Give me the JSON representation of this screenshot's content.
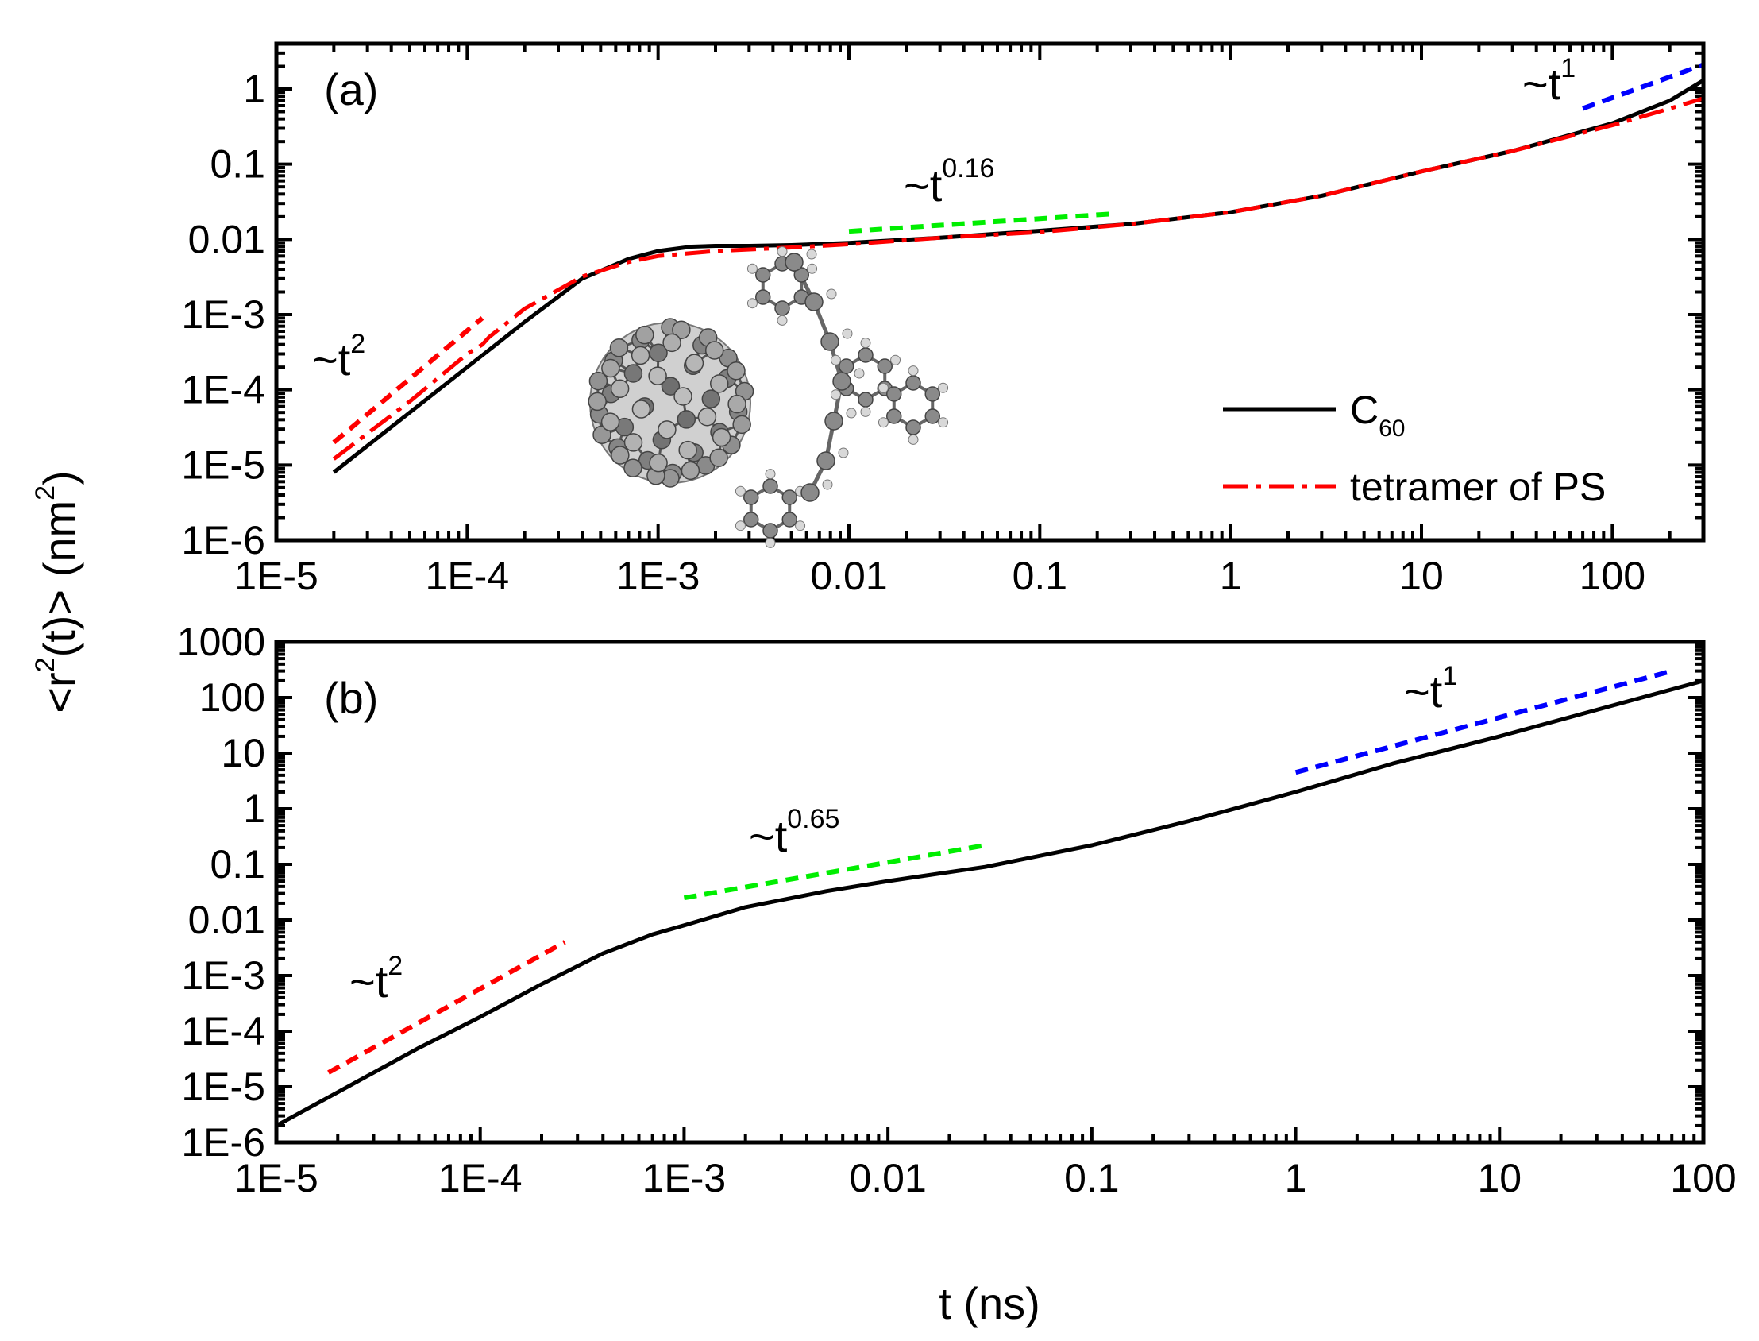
{
  "chart_data": [
    {
      "panel": "(a)",
      "type": "line",
      "xscale": "log",
      "yscale": "log",
      "xlim": [
        1e-05,
        300
      ],
      "ylim": [
        1e-06,
        4
      ],
      "xlabel": "",
      "ylabel": "",
      "xticks": [
        "1E-5",
        "1E-4",
        "1E-3",
        "0.01",
        "0.1",
        "1",
        "10",
        "100"
      ],
      "yticks": [
        "1E-6",
        "1E-5",
        "1E-4",
        "1E-3",
        "0.01",
        "0.1",
        "1"
      ],
      "legend_position": "bottom-right",
      "series": [
        {
          "name": "C60",
          "name_main": "C",
          "name_sub": "60",
          "color": "#000000",
          "style": "solid",
          "x": [
            2e-05,
            5e-05,
            0.0001,
            0.0002,
            0.0004,
            0.0007,
            0.001,
            0.0015,
            0.002,
            0.003,
            0.005,
            0.01,
            0.03,
            0.1,
            0.3,
            1,
            3,
            10,
            30,
            100,
            200,
            300
          ],
          "y": [
            8e-06,
            5e-05,
            0.0002,
            0.0008,
            0.003,
            0.0055,
            0.007,
            0.008,
            0.0082,
            0.0082,
            0.0084,
            0.009,
            0.0105,
            0.013,
            0.016,
            0.023,
            0.038,
            0.08,
            0.15,
            0.35,
            0.7,
            1.3
          ]
        },
        {
          "name": "tetramer of PS",
          "color": "#ff0000",
          "style": "dashdot",
          "x": [
            2e-05,
            5e-05,
            0.0001,
            0.00012,
            0.00013,
            0.0002,
            0.0004,
            0.0007,
            0.001,
            0.002,
            0.005,
            0.01,
            0.03,
            0.1,
            0.3,
            1,
            3,
            10,
            30,
            100,
            200,
            300
          ],
          "y": [
            1.2e-05,
            7e-05,
            0.0003,
            0.0004,
            0.0005,
            0.0012,
            0.0032,
            0.005,
            0.006,
            0.007,
            0.0078,
            0.0086,
            0.0105,
            0.0125,
            0.016,
            0.023,
            0.038,
            0.08,
            0.15,
            0.33,
            0.55,
            0.75
          ]
        }
      ],
      "guides": [
        {
          "label_base": "~t",
          "label_exp": "2",
          "color": "#ff0000",
          "x": [
            2e-05,
            0.00012
          ],
          "y": [
            2e-05,
            0.0009
          ]
        },
        {
          "label_base": "~t",
          "label_exp": "0.16",
          "color": "#00ee00",
          "x": [
            0.01,
            0.25
          ],
          "y": [
            0.0128,
            0.022
          ]
        },
        {
          "label_base": "~t",
          "label_exp": "1",
          "color": "#0000ff",
          "x": [
            70,
            300
          ],
          "y": [
            0.55,
            2.1
          ]
        }
      ]
    },
    {
      "panel": "(b)",
      "type": "line",
      "xscale": "log",
      "yscale": "log",
      "xlim": [
        1e-05,
        100
      ],
      "ylim": [
        1e-06,
        1000
      ],
      "xlabel": "t (ns)",
      "ylabel_base": "<r",
      "ylabel_sup1": "2",
      "ylabel_mid": "(t)> (nm",
      "ylabel_sup2": "2",
      "ylabel_end": ")",
      "xticks": [
        "1E-5",
        "1E-4",
        "1E-3",
        "0.01",
        "0.1",
        "1",
        "10",
        "100"
      ],
      "yticks": [
        "1E-6",
        "1E-5",
        "1E-4",
        "1E-3",
        "0.01",
        "0.1",
        "1",
        "10",
        "100",
        "1000"
      ],
      "series": [
        {
          "name": "C60",
          "color": "#000000",
          "style": "solid",
          "x": [
            1e-05,
            2e-05,
            5e-05,
            0.0001,
            0.0002,
            0.0004,
            0.0007,
            0.001,
            0.002,
            0.005,
            0.01,
            0.03,
            0.1,
            0.3,
            1,
            3,
            10,
            30,
            100
          ],
          "y": [
            2e-06,
            8e-06,
            5e-05,
            0.00018,
            0.0007,
            0.0025,
            0.0055,
            0.008,
            0.017,
            0.033,
            0.05,
            0.09,
            0.22,
            0.6,
            2,
            6.5,
            20,
            60,
            200
          ]
        }
      ],
      "guides": [
        {
          "label_base": "~t",
          "label_exp": "2",
          "color": "#ff0000",
          "x": [
            1.8e-05,
            0.00026
          ],
          "y": [
            1.8e-05,
            0.004
          ]
        },
        {
          "label_base": "~t",
          "label_exp": "0.65",
          "color": "#00ee00",
          "x": [
            0.001,
            0.03
          ],
          "y": [
            0.025,
            0.22
          ]
        },
        {
          "label_base": "~t",
          "label_exp": "1",
          "color": "#0000ff",
          "x": [
            1,
            70
          ],
          "y": [
            4.5,
            300
          ]
        }
      ]
    }
  ]
}
